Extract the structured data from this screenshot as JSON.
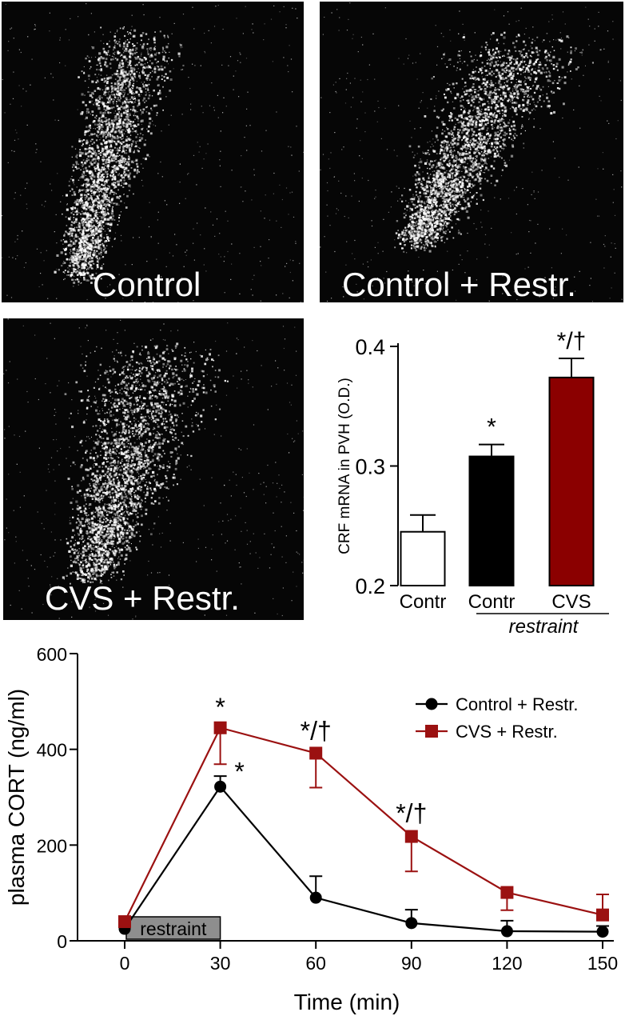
{
  "panels": {
    "control_label": "Control",
    "control_restr_label": "Control + Restr.",
    "cvs_restr_label": "CVS + Restr."
  },
  "chart_data": [
    {
      "type": "bar",
      "ylabel": "CRF mRNA in PVH (O.D.)",
      "ylim": [
        0.2,
        0.4
      ],
      "yticks": [
        "0.2",
        "0.3",
        "0.4"
      ],
      "categories": [
        "Contr",
        "Contr",
        "CVS"
      ],
      "group_label": "restraint",
      "values": [
        0.245,
        0.308,
        0.374
      ],
      "errors": [
        0.014,
        0.01,
        0.016
      ],
      "fills": [
        "#ffffff",
        "#000000",
        "#8b0000"
      ],
      "annotations": [
        "",
        "*",
        "*/†"
      ],
      "grid": false
    },
    {
      "type": "line",
      "xlabel": "Time (min)",
      "ylabel": "plasma CORT (ng/ml)",
      "x": [
        0,
        30,
        60,
        90,
        120,
        150
      ],
      "xticks": [
        "0",
        "30",
        "60",
        "90",
        "120",
        "150"
      ],
      "yticks": [
        "0",
        "200",
        "400",
        "600"
      ],
      "ylim": [
        0,
        600
      ],
      "xlim": [
        -10,
        155
      ],
      "grid": false,
      "legend_position": "top-right",
      "shaded_label": "restraint",
      "shaded_range": [
        0,
        30
      ],
      "series": [
        {
          "name": "Control + Restr.",
          "values": [
            25,
            322,
            90,
            37,
            20,
            19
          ],
          "errors_up": [
            0,
            22,
            45,
            28,
            22,
            12
          ],
          "errors_down": [
            0,
            0,
            0,
            0,
            0,
            0
          ],
          "color": "#000000",
          "marker": "circle"
        },
        {
          "name": "CVS + Restr.",
          "values": [
            40,
            445,
            392,
            218,
            101,
            54
          ],
          "errors_up": [
            0,
            0,
            0,
            0,
            0,
            43
          ],
          "errors_down": [
            0,
            76,
            72,
            73,
            37,
            0
          ],
          "color": "#9b1111",
          "marker": "square"
        }
      ],
      "annotations": [
        {
          "x": 30,
          "y": 470,
          "text": "*"
        },
        {
          "x": 30,
          "y": 335,
          "text": "*"
        },
        {
          "x": 60,
          "y": 420,
          "text": "*/†"
        },
        {
          "x": 90,
          "y": 248,
          "text": "*/†"
        }
      ]
    }
  ]
}
